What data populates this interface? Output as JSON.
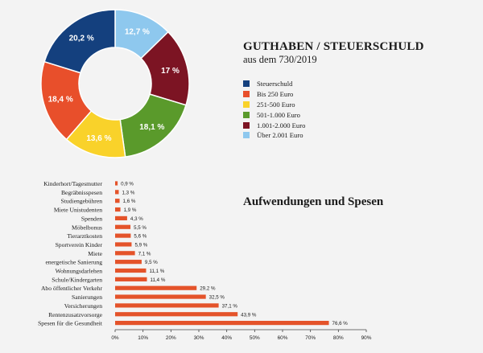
{
  "donut": {
    "title": "GUTHABEN / STEUERSCHULD",
    "subtitle": "aus dem 730/2019",
    "chart_data": {
      "type": "pie",
      "slices": [
        {
          "name": "Steuerschuld",
          "value": 20.2,
          "label": "20,2 %",
          "color": "#14407e"
        },
        {
          "name": "Bis 250 Euro",
          "value": 18.4,
          "label": "18,4 %",
          "color": "#e84f2b"
        },
        {
          "name": "251-500 Euro",
          "value": 13.6,
          "label": "13,6 %",
          "color": "#f9d22a"
        },
        {
          "name": "501-1.000 Euro",
          "value": 18.1,
          "label": "18,1 %",
          "color": "#5a9a2b"
        },
        {
          "name": "1.001-2.000 Euro",
          "value": 17.0,
          "label": "17 %",
          "color": "#7c1423"
        },
        {
          "name": "Über 2.001 Euro",
          "value": 12.7,
          "label": "12,7 %",
          "color": "#8ec8ee"
        }
      ]
    }
  },
  "bars": {
    "title": "Aufwendungen und Spesen",
    "chart_data": {
      "type": "bar",
      "orientation": "horizontal",
      "color": "#e4532a",
      "categories": [
        "Kinderhort/Tagesmutter",
        "Begräbnisspesen",
        "Studiengebühren",
        "Miete Unistudenten",
        "Spenden",
        "Möbelbonus",
        "Tierarztkosten",
        "Sportverein Kinder",
        "Miete",
        "energetische Sanierung",
        "Wohnungsdarlehen",
        "Schule/Kindergarten",
        "Abo öffentlicher Verkehr",
        "Sanierungen",
        "Versicherungen",
        "Rentenzusatzvorsorge",
        "Spesen für die Gesundheit"
      ],
      "values": [
        0.9,
        1.3,
        1.6,
        1.9,
        4.3,
        5.5,
        5.6,
        5.9,
        7.1,
        9.5,
        11.1,
        11.4,
        29.2,
        32.5,
        37.1,
        43.9,
        76.6
      ],
      "value_labels": [
        "0,9 %",
        "1,3 %",
        "1,6 %",
        "1,9 %",
        "4,3 %",
        "5,5 %",
        "5,6 %",
        "5,9 %",
        "7,1 %",
        "9,5 %",
        "11,1 %",
        "11,4 %",
        "29,2 %",
        "32,5 %",
        "37,1 %",
        "43,9 %",
        "76,6 %"
      ],
      "xlim": [
        0,
        90
      ],
      "xticks": [
        0,
        10,
        20,
        30,
        40,
        50,
        60,
        70,
        80,
        90
      ],
      "xtick_labels": [
        "0%",
        "10%",
        "20%",
        "30%",
        "40%",
        "50%",
        "60%",
        "70%",
        "80%",
        "90%"
      ]
    }
  }
}
